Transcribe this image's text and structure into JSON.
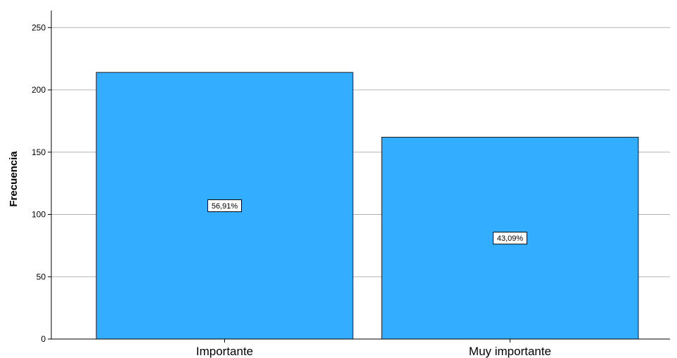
{
  "chart_data": {
    "type": "bar",
    "title": "",
    "xlabel": "",
    "ylabel": "Frecuencia",
    "categories": [
      "Importante",
      "Muy importante"
    ],
    "values": [
      214,
      162
    ],
    "data_labels": [
      "56,91%",
      "43,09%"
    ],
    "ylim": [
      0,
      260
    ],
    "yticks": [
      0,
      50,
      100,
      150,
      200,
      250
    ],
    "grid": true,
    "legend": "none",
    "colors": {
      "bar": "#33adff",
      "bar_stroke": "#1a1a1a",
      "grid": "#b3b3b3"
    }
  }
}
